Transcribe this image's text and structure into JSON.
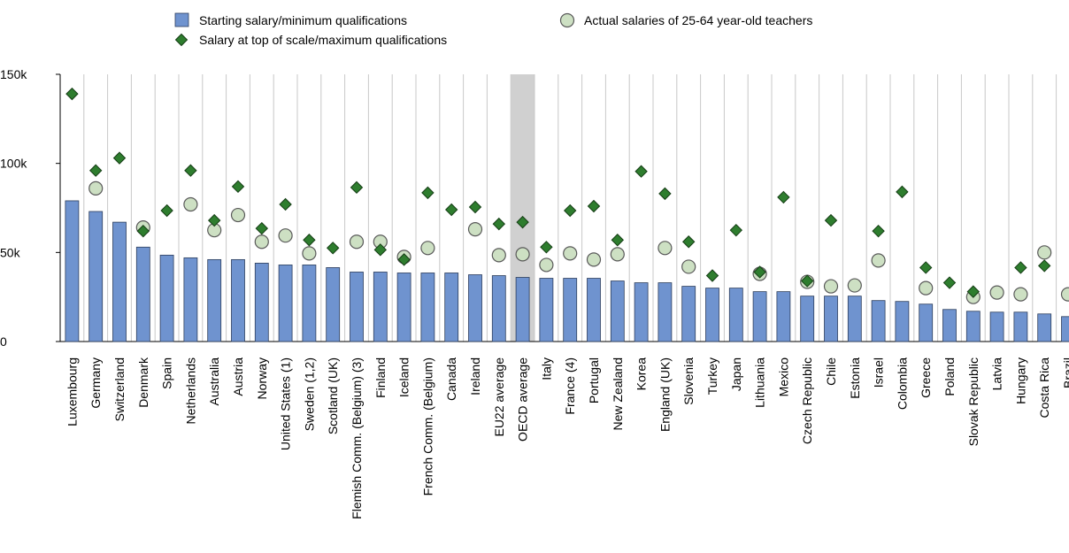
{
  "chart_data": {
    "type": "bar",
    "title": "",
    "xlabel": "",
    "ylabel": "",
    "ylim": [
      0,
      150000
    ],
    "yticks": [
      0,
      50000,
      100000,
      150000
    ],
    "ytick_labels": [
      "0",
      "50k",
      "100k",
      "150k"
    ],
    "grid": "vertical",
    "legend_position": "top",
    "highlight_category": "OECD average",
    "categories": [
      "Luxembourg",
      "Germany",
      "Switzerland",
      "Denmark",
      "Spain",
      "Netherlands",
      "Australia",
      "Austria",
      "Norway",
      "United States (1)",
      "Sweden (1,2)",
      "Scotland (UK)",
      "Flemish Comm. (Belgium) (3)",
      "Finland",
      "Iceland",
      "French Comm. (Belgium)",
      "Canada",
      "Ireland",
      "EU22 average",
      "OECD average",
      "Italy",
      "France (4)",
      "Portugal",
      "New Zealand",
      "Korea",
      "England (UK)",
      "Slovenia",
      "Turkey",
      "Japan",
      "Lithuania",
      "Mexico",
      "Czech Republic",
      "Chile",
      "Estonia",
      "Israel",
      "Colombia",
      "Greece",
      "Poland",
      "Slovak Republic",
      "Latvia",
      "Hungary",
      "Costa Rica",
      "Brazil"
    ],
    "series": [
      {
        "name": "Starting salary/minimum qualifications",
        "mark": "bar",
        "values": [
          79000,
          73000,
          67000,
          53000,
          48500,
          47000,
          46000,
          46000,
          44000,
          43000,
          43000,
          41500,
          39000,
          39000,
          38500,
          38500,
          38500,
          37500,
          37000,
          36000,
          35500,
          35500,
          35500,
          34000,
          33000,
          33000,
          31000,
          30000,
          30000,
          28000,
          28000,
          25500,
          25500,
          25500,
          23000,
          22500,
          21000,
          18000,
          17000,
          16500,
          16500,
          15500,
          14000
        ]
      },
      {
        "name": "Salary at top of scale/maximum qualifications",
        "mark": "diamond",
        "values": [
          139000,
          96000,
          103000,
          62000,
          73500,
          96000,
          68000,
          87000,
          63500,
          77000,
          57000,
          52500,
          86500,
          51500,
          46000,
          83500,
          74000,
          75500,
          66000,
          67000,
          53000,
          73500,
          76000,
          57000,
          95500,
          83000,
          56000,
          37000,
          62500,
          39000,
          81000,
          34000,
          68000,
          null,
          62000,
          84000,
          41500,
          33000,
          28000,
          null,
          41500,
          42500,
          null
        ]
      },
      {
        "name": "Actual salaries of 25-64 year-old teachers",
        "mark": "circle",
        "values": [
          null,
          86000,
          null,
          64000,
          null,
          77000,
          62500,
          71000,
          56000,
          59500,
          49500,
          null,
          56000,
          56000,
          47500,
          52500,
          null,
          63000,
          48500,
          49000,
          43000,
          49500,
          46000,
          49000,
          null,
          52500,
          42000,
          null,
          null,
          38000,
          null,
          33500,
          31000,
          31500,
          45500,
          null,
          30000,
          null,
          25000,
          27500,
          26500,
          50000,
          26500
        ]
      }
    ]
  },
  "colors": {
    "bar_fill": "#6f93cf",
    "bar_stroke": "#2d3e5c",
    "diamond_fill": "#2e7d2e",
    "diamond_stroke": "#163d16",
    "circle_fill": "#cde0c3",
    "circle_stroke": "#595959",
    "grid": "#c8c8c8",
    "highlight": "#d0d0d0",
    "axis": "#000000"
  }
}
